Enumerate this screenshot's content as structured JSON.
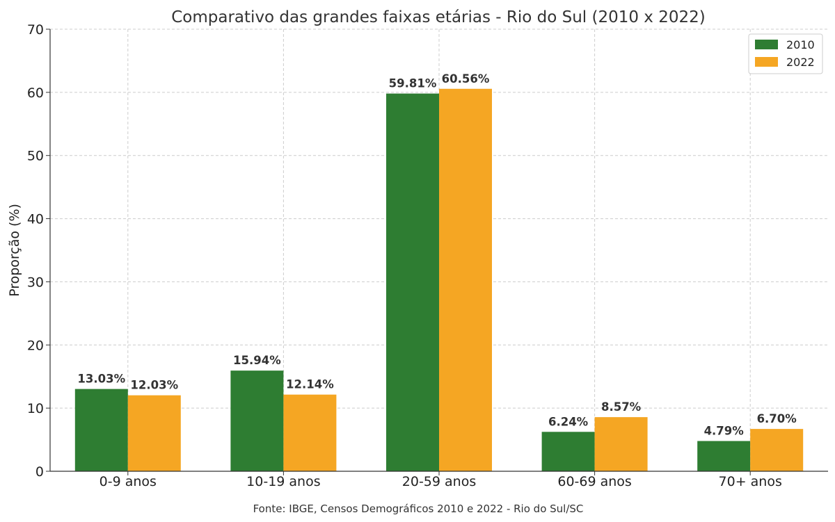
{
  "chart_data": {
    "type": "bar",
    "title": "Comparativo das grandes faixas etárias - Rio do Sul (2010 x 2022)",
    "xlabel": "",
    "ylabel": "Proporção (%)",
    "ylim": [
      0,
      70
    ],
    "yticks": [
      "0",
      "10",
      "20",
      "30",
      "40",
      "50",
      "60",
      "70"
    ],
    "grid": true,
    "legend_position": "top-right",
    "categories": [
      "0-9 anos",
      "10-19 anos",
      "20-59 anos",
      "60-69 anos",
      "70+ anos"
    ],
    "series": [
      {
        "name": "2010",
        "color": "#2e7d32",
        "values": [
          13.03,
          15.94,
          59.81,
          6.24,
          4.79
        ],
        "labels": [
          "13.03%",
          "15.94%",
          "59.81%",
          "6.24%",
          "4.79%"
        ]
      },
      {
        "name": "2022",
        "color": "#f5a623",
        "values": [
          12.03,
          12.14,
          60.56,
          8.57,
          6.7
        ],
        "labels": [
          "12.03%",
          "12.14%",
          "60.56%",
          "8.57%",
          "6.70%"
        ]
      }
    ],
    "source_note": "Fonte: IBGE, Censos Demográficos 2010 e 2022 - Rio do Sul/SC"
  }
}
